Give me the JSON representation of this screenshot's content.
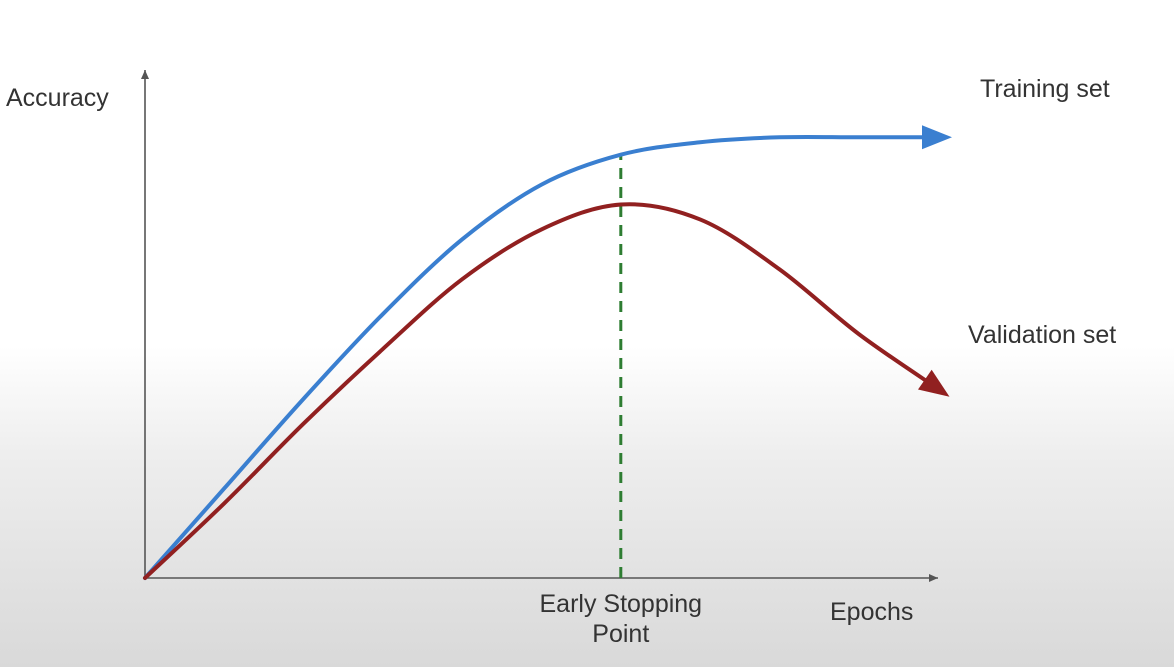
{
  "chart_data": {
    "type": "line",
    "title": "",
    "ylabel": "Accuracy",
    "xlabel": "Epochs",
    "grid": false,
    "axis_ticks": false,
    "series": [
      {
        "name": "Training set",
        "color": "#3a7fd0",
        "points": [
          [
            0,
            0
          ],
          [
            0.1,
            0.18
          ],
          [
            0.2,
            0.36
          ],
          [
            0.3,
            0.53
          ],
          [
            0.4,
            0.68
          ],
          [
            0.5,
            0.79
          ],
          [
            0.6,
            0.85
          ],
          [
            0.7,
            0.875
          ],
          [
            0.8,
            0.885
          ],
          [
            0.9,
            0.885
          ],
          [
            1.0,
            0.885
          ]
        ]
      },
      {
        "name": "Validation set",
        "color": "#912020",
        "points": [
          [
            0,
            0
          ],
          [
            0.1,
            0.15
          ],
          [
            0.2,
            0.31
          ],
          [
            0.3,
            0.46
          ],
          [
            0.4,
            0.6
          ],
          [
            0.5,
            0.7
          ],
          [
            0.6,
            0.75
          ],
          [
            0.7,
            0.72
          ],
          [
            0.8,
            0.62
          ],
          [
            0.9,
            0.49
          ],
          [
            1.0,
            0.38
          ]
        ]
      }
    ],
    "annotation": {
      "label_line1": "Early Stopping",
      "label_line2": "Point",
      "x": 0.6,
      "color": "#2e7d32",
      "style": "dashed"
    },
    "xlim": [
      0,
      1.0
    ],
    "ylim": [
      0,
      1.0
    ]
  }
}
